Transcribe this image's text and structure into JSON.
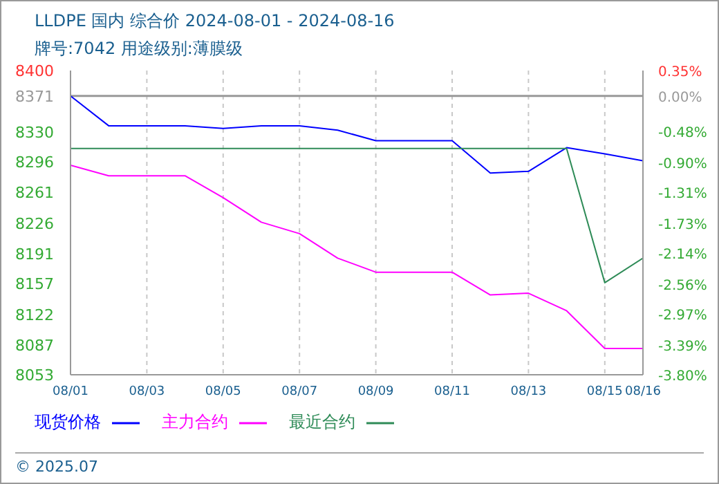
{
  "chart_data": {
    "type": "line",
    "title": "LLDPE 国内 综合价 2024-08-01 - 2024-08-16",
    "subtitle": "牌号:7042 用途级别:薄膜级",
    "x": [
      "2024-08-01",
      "2024-08-02",
      "2024-08-03",
      "2024-08-04",
      "2024-08-05",
      "2024-08-06",
      "2024-08-07",
      "2024-08-08",
      "2024-08-09",
      "2024-08-10",
      "2024-08-11",
      "2024-08-12",
      "2024-08-13",
      "2024-08-14",
      "2024-08-15",
      "2024-08-16"
    ],
    "series": [
      {
        "name": "现货价格",
        "color": "#0000ff",
        "values": [
          8371,
          8337,
          8337,
          8337,
          8334,
          8337,
          8337,
          8332,
          8320,
          8320,
          8320,
          8283,
          8285,
          8312,
          8305,
          8297
        ]
      },
      {
        "name": "主力合约",
        "color": "#ff00ff",
        "values": [
          8292,
          8280,
          8280,
          8280,
          8255,
          8227,
          8214,
          8186,
          8170,
          8170,
          8170,
          8144,
          8146,
          8126,
          8083,
          8083
        ]
      },
      {
        "name": "最近合约",
        "color": "#2e8b57",
        "values": [
          8311,
          8311,
          8311,
          8311,
          8311,
          8311,
          8311,
          8311,
          8311,
          8311,
          8311,
          8311,
          8311,
          8311,
          8158,
          8186
        ]
      }
    ],
    "xlim": [
      "2024-08-01",
      "2024-08-16"
    ],
    "xticks": [
      {
        "value": "2024-08-01",
        "label": "08/01"
      },
      {
        "value": "2024-08-03",
        "label": "08/03"
      },
      {
        "value": "2024-08-05",
        "label": "08/05"
      },
      {
        "value": "2024-08-07",
        "label": "08/07"
      },
      {
        "value": "2024-08-09",
        "label": "08/09"
      },
      {
        "value": "2024-08-11",
        "label": "08/11"
      },
      {
        "value": "2024-08-13",
        "label": "08/13"
      },
      {
        "value": "2024-08-15",
        "label": "08/15"
      },
      {
        "value": "2024-08-16",
        "label": "08/16"
      }
    ],
    "ylim": [
      8053,
      8400
    ],
    "yticks": [
      8053,
      8087,
      8122,
      8157,
      8191,
      8226,
      8261,
      8296,
      8330,
      8371,
      8400
    ],
    "y2lim": [
      -3.8,
      0.35
    ],
    "y2ticks": [
      {
        "value": -3.8,
        "label": "-3.80%"
      },
      {
        "value": -3.39,
        "label": "-3.39%"
      },
      {
        "value": -2.97,
        "label": "-2.97%"
      },
      {
        "value": -2.56,
        "label": "-2.56%"
      },
      {
        "value": -2.14,
        "label": "-2.14%"
      },
      {
        "value": -1.73,
        "label": "-1.73%"
      },
      {
        "value": -1.31,
        "label": "-1.31%"
      },
      {
        "value": -0.9,
        "label": "-0.90%"
      },
      {
        "value": -0.48,
        "label": "-0.48%"
      },
      {
        "value": 0,
        "label": "0.00%"
      },
      {
        "value": 0.35,
        "label": "0.35%"
      }
    ],
    "ref_lines": [
      {
        "axis": "y",
        "value": 8371,
        "color": "#999999"
      }
    ],
    "grid": true,
    "legend": "bottom",
    "marker": "none",
    "line_style": "solid",
    "annotations": [
      "© 2025.07"
    ]
  }
}
